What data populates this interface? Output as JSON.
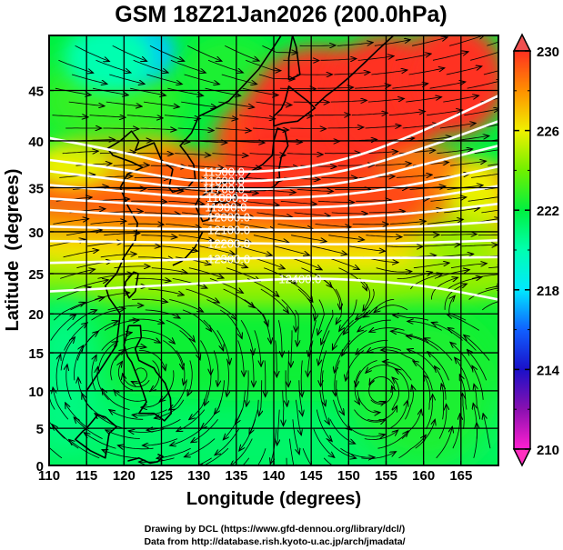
{
  "chart_data": {
    "type": "heatmap",
    "title": "GSM 18Z21Jan2026 (200.0hPa)",
    "xlabel": "Longitude (degrees)",
    "ylabel": "Latitude  (degrees)",
    "xlim": [
      110,
      170
    ],
    "ylim": [
      0,
      50
    ],
    "projection": "mercator",
    "x_ticks": [
      "110",
      "115",
      "120",
      "125",
      "130",
      "135",
      "140",
      "145",
      "150",
      "155",
      "160",
      "165"
    ],
    "x_tick_values": [
      110,
      115,
      120,
      125,
      130,
      135,
      140,
      145,
      150,
      155,
      160,
      165
    ],
    "y_ticks": [
      "0",
      "5",
      "10",
      "15",
      "20",
      "25",
      "30",
      "35",
      "40",
      "45"
    ],
    "y_tick_values": [
      0,
      5,
      10,
      15,
      20,
      25,
      30,
      35,
      40,
      45
    ],
    "grid": true,
    "shaded_field": {
      "description_units": "temperature (K)",
      "colorbar": {
        "min": 210,
        "max": 230,
        "tick_labels": [
          "230",
          "226",
          "222",
          "218",
          "214",
          "210"
        ],
        "tick_values": [
          230,
          226,
          222,
          218,
          214,
          210
        ],
        "extend": "both",
        "stops": [
          {
            "value": 210,
            "color": "#ff1fd0"
          },
          {
            "value": 212,
            "color": "#8a10b0"
          },
          {
            "value": 214,
            "color": "#1a10c8"
          },
          {
            "value": 216,
            "color": "#1060ff"
          },
          {
            "value": 218,
            "color": "#00e8ff"
          },
          {
            "value": 220,
            "color": "#00ffb0"
          },
          {
            "value": 222,
            "color": "#00f040"
          },
          {
            "value": 224,
            "color": "#70f000"
          },
          {
            "value": 226,
            "color": "#f0f000"
          },
          {
            "value": 228,
            "color": "#ff9000"
          },
          {
            "value": 230,
            "color": "#ff3020"
          }
        ],
        "upper_extend_color": "#f05050",
        "lower_extend_color": "#ff30c0"
      },
      "regions": [
        {
          "name": "cold-pocket-north",
          "lon": 122,
          "lat": 48.5,
          "value": 217
        },
        {
          "name": "warm-core-japan",
          "lon": 147,
          "lat": 40,
          "value": 230
        },
        {
          "name": "warm-core-northeast",
          "lon": 162,
          "lat": 46,
          "value": 230
        },
        {
          "name": "warm-band-subtropics",
          "lon": 140,
          "lat": 33,
          "value": 228
        },
        {
          "name": "tropics",
          "lon": 140,
          "lat": 10,
          "value": 222
        }
      ]
    },
    "contours": {
      "field": "geopotential height (m)",
      "color": "#ffffff",
      "levels": [
        11500.0,
        11600.0,
        11700.0,
        11800.0,
        11900.0,
        12000.0,
        12100.0,
        12200.0,
        12300.0,
        12400.0
      ],
      "labels": [
        "11500.0",
        "11600.0",
        "11700.0",
        "11800.0",
        "11900.0",
        "12000.0",
        "12100.0",
        "12200.0",
        "12300.0",
        "12400.0"
      ],
      "lines": [
        {
          "level": 11500,
          "points": [
            [
              110,
              40.3
            ],
            [
              120,
              38.8
            ],
            [
              128,
              37.2
            ],
            [
              131,
              36.8
            ],
            [
              140,
              36.7
            ],
            [
              150,
              38.0
            ],
            [
              160,
              41.0
            ],
            [
              170,
              44.5
            ]
          ]
        },
        {
          "level": 11600,
          "points": [
            [
              110,
              38.0
            ],
            [
              120,
              37.0
            ],
            [
              128,
              35.8
            ],
            [
              131,
              35.8
            ],
            [
              140,
              35.7
            ],
            [
              150,
              36.8
            ],
            [
              160,
              39.2
            ],
            [
              170,
              42.0
            ]
          ]
        },
        {
          "level": 11700,
          "points": [
            [
              110,
              36.8
            ],
            [
              120,
              35.8
            ],
            [
              128,
              35.0
            ],
            [
              131,
              34.9
            ],
            [
              140,
              34.8
            ],
            [
              150,
              35.5
            ],
            [
              160,
              37.5
            ],
            [
              170,
              39.5
            ]
          ]
        },
        {
          "level": 11800,
          "points": [
            [
              110,
              35.3
            ],
            [
              120,
              34.6
            ],
            [
              128,
              34.0
            ],
            [
              131,
              34.0
            ],
            [
              140,
              33.8
            ],
            [
              150,
              34.2
            ],
            [
              160,
              35.5
            ],
            [
              170,
              37.3
            ]
          ]
        },
        {
          "level": 11900,
          "points": [
            [
              110,
              33.8
            ],
            [
              120,
              33.3
            ],
            [
              128,
              32.9
            ],
            [
              131,
              32.9
            ],
            [
              140,
              32.7
            ],
            [
              150,
              32.9
            ],
            [
              160,
              33.8
            ],
            [
              170,
              35.2
            ]
          ]
        },
        {
          "level": 12000,
          "points": [
            [
              110,
              32.5
            ],
            [
              120,
              32.0
            ],
            [
              128,
              31.8
            ],
            [
              131,
              31.8
            ],
            [
              140,
              31.5
            ],
            [
              150,
              31.6
            ],
            [
              160,
              32.2
            ],
            [
              170,
              33.2
            ]
          ]
        },
        {
          "level": 12100,
          "points": [
            [
              110,
              30.6
            ],
            [
              120,
              30.4
            ],
            [
              128,
              30.3
            ],
            [
              131,
              30.3
            ],
            [
              140,
              30.2
            ],
            [
              150,
              30.2
            ],
            [
              160,
              30.6
            ],
            [
              170,
              31.2
            ]
          ]
        },
        {
          "level": 12200,
          "points": [
            [
              110,
              28.9
            ],
            [
              120,
              28.8
            ],
            [
              128,
              28.7
            ],
            [
              131,
              28.7
            ],
            [
              140,
              28.6
            ],
            [
              150,
              28.5
            ],
            [
              160,
              28.7
            ],
            [
              170,
              29.0
            ]
          ]
        },
        {
          "level": 12300,
          "points": [
            [
              110,
              26.3
            ],
            [
              120,
              26.5
            ],
            [
              128,
              26.7
            ],
            [
              131,
              26.8
            ],
            [
              140,
              26.9
            ],
            [
              150,
              26.9
            ],
            [
              160,
              26.9
            ],
            [
              170,
              27.0
            ]
          ]
        },
        {
          "level": 12400,
          "points": [
            [
              110,
              22.8
            ],
            [
              120,
              23.3
            ],
            [
              130,
              23.8
            ],
            [
              140,
              24.3
            ],
            [
              145,
              24.4
            ],
            [
              150,
              24.3
            ],
            [
              160,
              23.6
            ],
            [
              170,
              21.8
            ]
          ]
        }
      ]
    },
    "streamlines": {
      "field": "wind",
      "color": "#000000",
      "features": [
        {
          "name": "westerly-jet",
          "lat_range": [
            25,
            50
          ]
        },
        {
          "name": "anticyclone-west",
          "lon": 122,
          "lat": 12
        },
        {
          "name": "cyclonic-vortex",
          "lon": 154,
          "lat": 10
        }
      ]
    }
  },
  "credits": {
    "line1": "Drawing by DCL (https://www.gfd-dennou.org/library/dcl/)",
    "line2": "Data from http://database.rish.kyoto-u.ac.jp/arch/jmadata/"
  }
}
